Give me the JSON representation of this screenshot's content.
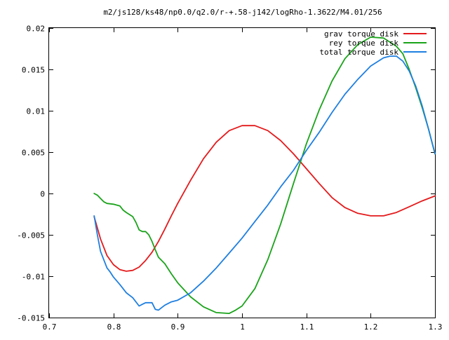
{
  "chart_data": {
    "type": "line",
    "title": "m2/js128/ks48/np0.0/q2.0/r-+.58-j142/logRho-1.3622/M4.01/256",
    "xlabel": "",
    "ylabel": "",
    "xlim": [
      0.7,
      1.3
    ],
    "ylim": [
      -0.015,
      0.02
    ],
    "x_ticks": [
      0.7,
      0.8,
      0.9,
      1.0,
      1.1,
      1.2,
      1.3
    ],
    "x_tick_labels": [
      "0.7",
      "0.8",
      "0.9",
      "1",
      "1.1",
      "1.2",
      "1.3"
    ],
    "y_ticks": [
      -0.015,
      -0.01,
      -0.005,
      0,
      0.005,
      0.01,
      0.015,
      0.02
    ],
    "y_tick_labels": [
      "-0.015",
      "-0.01",
      "-0.005",
      "0",
      "0.005",
      "0.01",
      "0.015",
      "0.02"
    ],
    "grid": false,
    "legend_position": "top-right",
    "series": [
      {
        "name": "grav torque disk",
        "color": "#e41a1c",
        "x": [
          0.77,
          0.78,
          0.79,
          0.8,
          0.81,
          0.82,
          0.83,
          0.84,
          0.85,
          0.86,
          0.87,
          0.88,
          0.89,
          0.9,
          0.92,
          0.94,
          0.96,
          0.98,
          1.0,
          1.02,
          1.04,
          1.06,
          1.08,
          1.1,
          1.12,
          1.14,
          1.16,
          1.18,
          1.2,
          1.22,
          1.24,
          1.26,
          1.28,
          1.3
        ],
        "y": [
          -0.0028,
          -0.0055,
          -0.0075,
          -0.0086,
          -0.0092,
          -0.0094,
          -0.0093,
          -0.0089,
          -0.0081,
          -0.0071,
          -0.0058,
          -0.0043,
          -0.0027,
          -0.0012,
          0.0016,
          0.0042,
          0.0062,
          0.0076,
          0.0082,
          0.0082,
          0.0076,
          0.0064,
          0.0048,
          0.003,
          0.0012,
          -0.0005,
          -0.0017,
          -0.0024,
          -0.0027,
          -0.0027,
          -0.0023,
          -0.0016,
          -0.0009,
          -0.0003
        ]
      },
      {
        "name": "rey torque disk",
        "color": "#1aa31a",
        "x": [
          0.77,
          0.775,
          0.78,
          0.785,
          0.79,
          0.8,
          0.81,
          0.815,
          0.82,
          0.83,
          0.835,
          0.84,
          0.845,
          0.85,
          0.855,
          0.86,
          0.865,
          0.87,
          0.88,
          0.89,
          0.9,
          0.92,
          0.94,
          0.96,
          0.98,
          0.99,
          1.0,
          1.02,
          1.04,
          1.06,
          1.08,
          1.1,
          1.12,
          1.14,
          1.16,
          1.18,
          1.2,
          1.22,
          1.24,
          1.25,
          1.26,
          1.27,
          1.28,
          1.29,
          1.3
        ],
        "y": [
          0.0,
          -0.0002,
          -0.0006,
          -0.001,
          -0.0012,
          -0.0013,
          -0.0015,
          -0.002,
          -0.0023,
          -0.0028,
          -0.0035,
          -0.0044,
          -0.0046,
          -0.0046,
          -0.005,
          -0.0058,
          -0.0068,
          -0.0077,
          -0.0085,
          -0.0097,
          -0.0108,
          -0.0125,
          -0.0137,
          -0.0144,
          -0.0145,
          -0.0141,
          -0.0136,
          -0.0115,
          -0.008,
          -0.0037,
          0.0012,
          0.006,
          0.0101,
          0.0136,
          0.0163,
          0.018,
          0.0189,
          0.0188,
          0.0178,
          0.0169,
          0.015,
          0.0128,
          0.0104,
          0.0078,
          0.0048
        ]
      },
      {
        "name": "total torque disk",
        "color": "#1f7fe0",
        "x": [
          0.77,
          0.775,
          0.78,
          0.785,
          0.79,
          0.795,
          0.8,
          0.81,
          0.82,
          0.83,
          0.84,
          0.845,
          0.85,
          0.86,
          0.865,
          0.87,
          0.875,
          0.88,
          0.89,
          0.9,
          0.92,
          0.94,
          0.96,
          0.98,
          1.0,
          1.02,
          1.04,
          1.06,
          1.08,
          1.1,
          1.12,
          1.14,
          1.16,
          1.18,
          1.2,
          1.22,
          1.23,
          1.24,
          1.25,
          1.26,
          1.27,
          1.28,
          1.29,
          1.3
        ],
        "y": [
          -0.0027,
          -0.005,
          -0.007,
          -0.008,
          -0.009,
          -0.0095,
          -0.0101,
          -0.011,
          -0.012,
          -0.0126,
          -0.0136,
          -0.0134,
          -0.0132,
          -0.0132,
          -0.014,
          -0.0141,
          -0.0138,
          -0.0135,
          -0.0131,
          -0.0129,
          -0.012,
          -0.0106,
          -0.009,
          -0.0072,
          -0.0054,
          -0.0034,
          -0.0014,
          0.0008,
          0.0028,
          0.0052,
          0.0074,
          0.0098,
          0.012,
          0.0138,
          0.0154,
          0.0164,
          0.0166,
          0.0166,
          0.016,
          0.0148,
          0.013,
          0.0106,
          0.0078,
          0.0048
        ]
      }
    ]
  }
}
